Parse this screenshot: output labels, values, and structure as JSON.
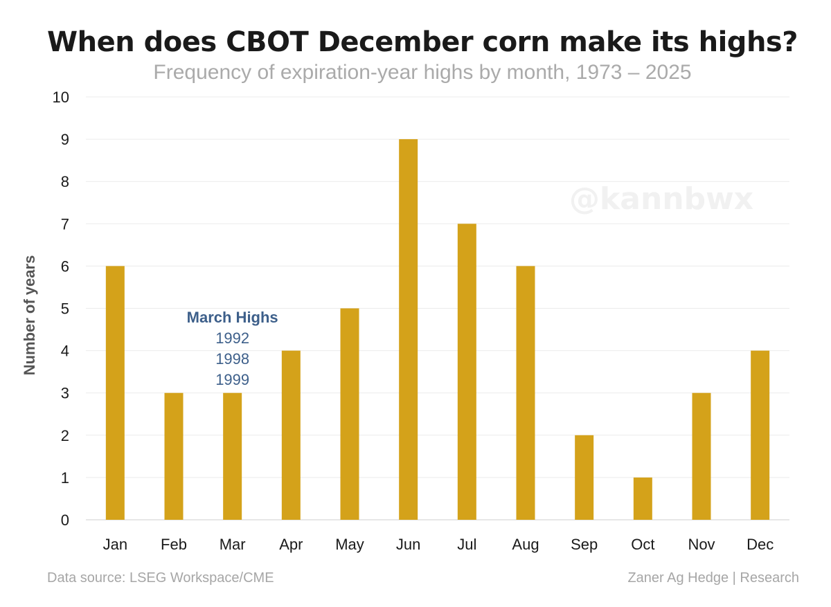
{
  "title": "When does CBOT December corn make its highs?",
  "subtitle": "Frequency of expiration-year highs by month, 1973 – 2025",
  "watermark": "@kannbwx",
  "footer": {
    "source": "Data source: LSEG Workspace/CME",
    "credit": "Zaner Ag Hedge | Research"
  },
  "colors": {
    "bar": "#d4a21a",
    "annotation": "#3d5f8a",
    "grid": "#ebebeb"
  },
  "chart_data": {
    "type": "bar",
    "title": "When does CBOT December corn make its highs?",
    "subtitle": "Frequency of expiration-year highs by month, 1973 – 2025",
    "xlabel": "",
    "ylabel": "Number of years",
    "ylim": [
      0,
      10
    ],
    "yticks": [
      0,
      1,
      2,
      3,
      4,
      5,
      6,
      7,
      8,
      9,
      10
    ],
    "grid": true,
    "categories": [
      "Jan",
      "Feb",
      "Mar",
      "Apr",
      "May",
      "Jun",
      "Jul",
      "Aug",
      "Sep",
      "Oct",
      "Nov",
      "Dec"
    ],
    "values": [
      6,
      3,
      3,
      4,
      5,
      9,
      7,
      6,
      2,
      1,
      3,
      4
    ],
    "annotation": {
      "category": "Mar",
      "heading": "March Highs",
      "lines": [
        "1992",
        "1998",
        "1999"
      ]
    }
  }
}
